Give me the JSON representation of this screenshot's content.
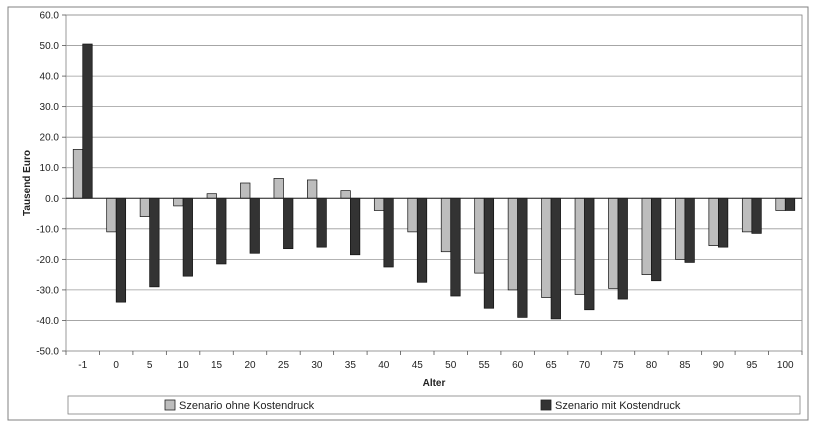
{
  "chart_data": {
    "type": "bar",
    "title": "",
    "xlabel": "Alter",
    "ylabel": "Tausend Euro",
    "ylim": [
      -50,
      60
    ],
    "yticks": [
      "60.0",
      "50.0",
      "40.0",
      "30.0",
      "20.0",
      "10.0",
      "0.0",
      "-10.0",
      "-20.0",
      "-30.0",
      "-40.0",
      "-50.0"
    ],
    "grid": true,
    "legend_position": "bottom",
    "categories": [
      "-1",
      "0",
      "5",
      "10",
      "15",
      "20",
      "25",
      "30",
      "35",
      "40",
      "45",
      "50",
      "55",
      "60",
      "65",
      "70",
      "75",
      "80",
      "85",
      "90",
      "95",
      "100"
    ],
    "series": [
      {
        "name": "Szenario ohne Kostendruck",
        "color": "#bdbdbd",
        "values": [
          16,
          -11,
          -6,
          -2.5,
          1.5,
          5,
          6.5,
          6,
          2.5,
          -4,
          -11,
          -17.5,
          -24.5,
          -30,
          -32.5,
          -31.5,
          -29.5,
          -25,
          -20,
          -15.5,
          -11,
          -4
        ]
      },
      {
        "name": "Szenario mit Kostendruck",
        "color": "#333333",
        "values": [
          50.5,
          -34,
          -29,
          -25.5,
          -21.5,
          -18,
          -16.5,
          -16,
          -18.5,
          -22.5,
          -27.5,
          -32,
          -36,
          -39,
          -39.5,
          -36.5,
          -33,
          -27,
          -21,
          -16,
          -11.5,
          -4
        ]
      }
    ]
  }
}
